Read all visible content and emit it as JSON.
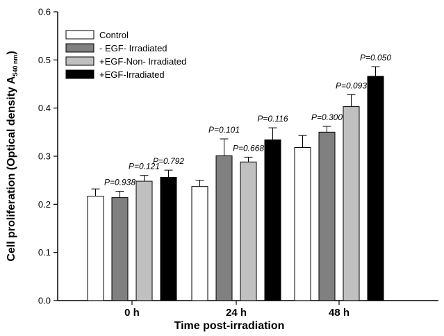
{
  "chart_data": {
    "type": "bar",
    "xlabel": "Time post-irradiation",
    "ylabel": "Cell proliferation (Optical density A",
    "ylabel_sub": "540 nm",
    "ylabel_close": ")",
    "ylim": [
      0.0,
      0.6
    ],
    "yticks": [
      "0.0",
      "0.1",
      "0.2",
      "0.3",
      "0.4",
      "0.5",
      "0.6"
    ],
    "categories": [
      "0 h",
      "24 h",
      "48 h"
    ],
    "legend_position": "top-left",
    "grid": false,
    "series": [
      {
        "name": "Control",
        "color": "#ffffff",
        "values": [
          0.217,
          0.237,
          0.318
        ],
        "errors": [
          0.015,
          0.013,
          0.025
        ]
      },
      {
        "name": "- EGF- Irradiated",
        "color": "#808080",
        "values": [
          0.214,
          0.301,
          0.35
        ],
        "errors": [
          0.013,
          0.035,
          0.012
        ]
      },
      {
        "name": "+EGF-Non- Irradiated",
        "color": "#c0c0c0",
        "values": [
          0.248,
          0.288,
          0.403
        ],
        "errors": [
          0.012,
          0.01,
          0.025
        ]
      },
      {
        "name": "+EGF-Irradiated",
        "color": "#000000",
        "values": [
          0.256,
          0.334,
          0.466
        ],
        "errors": [
          0.015,
          0.025,
          0.02
        ]
      }
    ],
    "annotations": [
      {
        "text": "P=0.938",
        "category": 0,
        "series": 1
      },
      {
        "text": "P=0.121",
        "category": 0,
        "series": 2
      },
      {
        "text": "P=0.792",
        "category": 0,
        "series": 3
      },
      {
        "text": "P=0.101",
        "category": 1,
        "series": 1
      },
      {
        "text": "P=0.668",
        "category": 1,
        "series": 2
      },
      {
        "text": "P=0.116",
        "category": 1,
        "series": 3
      },
      {
        "text": "P=0.300",
        "category": 2,
        "series": 1
      },
      {
        "text": "P=0.093",
        "category": 2,
        "series": 2
      },
      {
        "text": "P=0.050",
        "category": 2,
        "series": 3
      }
    ]
  }
}
